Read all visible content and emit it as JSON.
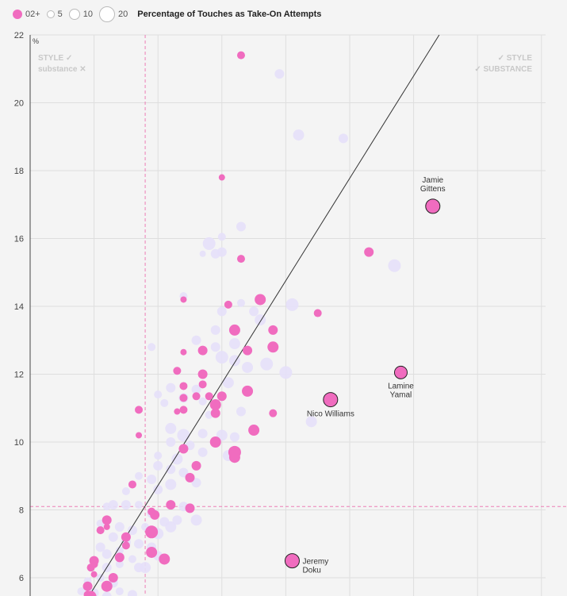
{
  "legend": {
    "cohort_label": "02+",
    "size_labels": [
      "5",
      "10",
      "20"
    ],
    "title": "Percentage of Touches as Take-On Attempts"
  },
  "colors": {
    "highlight": "#f06cbf",
    "background_points": "#e6e0fa",
    "reference_line": "#ec7fb6",
    "trend_line": "#333333",
    "grid": "#dedede",
    "quadrant_text": "#c8c8c8"
  },
  "quadrants": {
    "top_left_line1": "STYLE ✓",
    "top_left_line2": "substance ✕",
    "top_right_line1": "✓ STYLE",
    "top_right_line2": "✓ SUBSTANCE"
  },
  "chart_data": {
    "type": "scatter",
    "title": "Percentage of Touches as Take-On Attempts",
    "ylabel": "%",
    "ylim": [
      5.4,
      22
    ],
    "yticks": [
      6,
      8,
      10,
      12,
      14,
      16,
      18,
      20,
      22
    ],
    "xlim": [
      0,
      8.4
    ],
    "xgrid": [
      1,
      2,
      3,
      4,
      5,
      6,
      7,
      8
    ],
    "reference_lines": {
      "x": 1.8,
      "y": 8.1
    },
    "trend_line": {
      "from": [
        0.9,
        5.4
      ],
      "to": [
        6.4,
        22
      ]
    },
    "highlighted": [
      [
        3.3,
        21.4,
        5
      ],
      [
        3.0,
        17.8,
        4
      ],
      [
        6.3,
        16.95,
        9
      ],
      [
        5.3,
        15.6,
        6
      ],
      [
        3.3,
        15.4,
        5
      ],
      [
        3.6,
        14.2,
        7
      ],
      [
        4.5,
        13.8,
        5
      ],
      [
        2.4,
        14.2,
        4
      ],
      [
        3.1,
        14.05,
        5
      ],
      [
        3.8,
        13.3,
        6
      ],
      [
        3.2,
        13.3,
        7
      ],
      [
        3.4,
        12.7,
        6
      ],
      [
        3.8,
        12.8,
        7
      ],
      [
        2.7,
        12.7,
        6
      ],
      [
        2.4,
        12.65,
        4
      ],
      [
        2.3,
        12.1,
        5
      ],
      [
        2.7,
        12.0,
        6
      ],
      [
        2.7,
        11.7,
        5
      ],
      [
        2.4,
        11.65,
        5
      ],
      [
        3.4,
        11.5,
        7
      ],
      [
        3.0,
        11.35,
        6
      ],
      [
        2.8,
        11.35,
        5
      ],
      [
        2.6,
        11.35,
        5
      ],
      [
        2.4,
        11.3,
        5
      ],
      [
        2.9,
        11.1,
        7
      ],
      [
        1.7,
        10.95,
        5
      ],
      [
        2.3,
        10.9,
        4
      ],
      [
        2.4,
        10.95,
        5
      ],
      [
        2.9,
        10.85,
        6
      ],
      [
        3.8,
        10.85,
        5
      ],
      [
        3.5,
        10.35,
        7
      ],
      [
        1.7,
        10.2,
        4
      ],
      [
        2.9,
        10.0,
        7
      ],
      [
        2.4,
        9.8,
        6
      ],
      [
        3.2,
        9.7,
        8
      ],
      [
        3.2,
        9.55,
        7
      ],
      [
        2.6,
        9.3,
        6
      ],
      [
        2.5,
        8.95,
        6
      ],
      [
        1.6,
        8.75,
        5
      ],
      [
        2.5,
        8.05,
        6
      ],
      [
        2.2,
        8.15,
        6
      ],
      [
        1.9,
        7.95,
        5
      ],
      [
        1.95,
        7.85,
        6
      ],
      [
        1.2,
        7.7,
        6
      ],
      [
        1.1,
        7.4,
        5
      ],
      [
        1.2,
        7.5,
        4
      ],
      [
        1.9,
        7.35,
        8
      ],
      [
        1.5,
        7.2,
        6
      ],
      [
        1.5,
        6.95,
        5
      ],
      [
        1.9,
        6.75,
        7
      ],
      [
        1.4,
        6.6,
        6
      ],
      [
        2.1,
        6.55,
        7
      ],
      [
        1.0,
        6.5,
        6
      ],
      [
        0.95,
        6.3,
        5
      ],
      [
        1.0,
        6.1,
        4
      ],
      [
        1.0,
        6.4,
        5
      ],
      [
        1.3,
        6.0,
        6
      ],
      [
        0.9,
        5.75,
        6
      ],
      [
        1.2,
        5.75,
        7
      ],
      [
        0.95,
        5.45,
        7
      ],
      [
        0.9,
        5.5,
        5
      ],
      [
        4.7,
        11.25,
        9
      ],
      [
        4.1,
        6.5,
        9
      ],
      [
        5.8,
        12.05,
        8
      ]
    ],
    "background": [
      [
        3.9,
        20.85,
        6
      ],
      [
        4.2,
        19.05,
        7
      ],
      [
        4.9,
        18.95,
        6
      ],
      [
        3.3,
        16.35,
        6
      ],
      [
        3.0,
        16.05,
        5
      ],
      [
        2.8,
        15.85,
        8
      ],
      [
        3.0,
        15.6,
        6
      ],
      [
        2.9,
        15.55,
        6
      ],
      [
        2.7,
        15.55,
        4
      ],
      [
        5.7,
        15.2,
        8
      ],
      [
        4.1,
        14.05,
        8
      ],
      [
        3.5,
        13.85,
        6
      ],
      [
        3.3,
        14.1,
        5
      ],
      [
        3.0,
        13.85,
        6
      ],
      [
        3.6,
        13.6,
        7
      ],
      [
        2.9,
        13.3,
        6
      ],
      [
        2.4,
        14.3,
        5
      ],
      [
        2.6,
        13.0,
        6
      ],
      [
        3.2,
        12.9,
        7
      ],
      [
        2.9,
        12.8,
        6
      ],
      [
        3.0,
        12.5,
        8
      ],
      [
        3.7,
        12.3,
        8
      ],
      [
        3.4,
        12.2,
        7
      ],
      [
        4.0,
        12.05,
        8
      ],
      [
        1.9,
        12.8,
        5
      ],
      [
        2.2,
        11.6,
        6
      ],
      [
        2.0,
        11.4,
        5
      ],
      [
        2.6,
        11.55,
        6
      ],
      [
        3.2,
        12.4,
        7
      ],
      [
        3.1,
        11.75,
        7
      ],
      [
        2.4,
        11.3,
        6
      ],
      [
        2.7,
        11.2,
        5
      ],
      [
        2.1,
        11.15,
        5
      ],
      [
        2.8,
        10.8,
        5
      ],
      [
        3.3,
        10.9,
        6
      ],
      [
        4.4,
        10.6,
        7
      ],
      [
        2.2,
        10.4,
        7
      ],
      [
        2.4,
        10.2,
        8
      ],
      [
        2.7,
        10.25,
        6
      ],
      [
        3.0,
        10.2,
        7
      ],
      [
        3.2,
        10.15,
        6
      ],
      [
        2.2,
        10.0,
        6
      ],
      [
        2.5,
        9.9,
        6
      ],
      [
        2.9,
        9.95,
        5
      ],
      [
        2.0,
        9.6,
        5
      ],
      [
        2.3,
        9.5,
        7
      ],
      [
        2.7,
        9.7,
        6
      ],
      [
        3.1,
        9.6,
        7
      ],
      [
        2.6,
        9.3,
        5
      ],
      [
        2.0,
        9.3,
        6
      ],
      [
        2.2,
        9.2,
        6
      ],
      [
        2.4,
        9.1,
        6
      ],
      [
        1.7,
        9.0,
        5
      ],
      [
        1.9,
        8.9,
        6
      ],
      [
        2.2,
        8.75,
        7
      ],
      [
        2.6,
        8.8,
        6
      ],
      [
        2.0,
        8.6,
        6
      ],
      [
        1.5,
        8.55,
        5
      ],
      [
        1.2,
        8.1,
        5
      ],
      [
        1.3,
        8.15,
        6
      ],
      [
        1.5,
        8.15,
        6
      ],
      [
        1.7,
        8.15,
        5
      ],
      [
        2.4,
        8.1,
        6
      ],
      [
        1.9,
        7.9,
        6
      ],
      [
        2.1,
        7.65,
        6
      ],
      [
        2.2,
        7.5,
        7
      ],
      [
        2.3,
        7.7,
        6
      ],
      [
        2.6,
        7.7,
        7
      ],
      [
        1.1,
        7.6,
        5
      ],
      [
        1.4,
        7.5,
        6
      ],
      [
        1.6,
        7.4,
        6
      ],
      [
        1.8,
        7.5,
        5
      ],
      [
        2.0,
        7.3,
        7
      ],
      [
        1.3,
        7.2,
        6
      ],
      [
        1.5,
        7.05,
        6
      ],
      [
        1.7,
        7.0,
        6
      ],
      [
        1.9,
        6.9,
        6
      ],
      [
        2.0,
        6.65,
        6
      ],
      [
        1.4,
        6.8,
        5
      ],
      [
        1.1,
        6.9,
        6
      ],
      [
        1.2,
        6.7,
        6
      ],
      [
        1.6,
        6.55,
        5
      ],
      [
        1.8,
        6.3,
        7
      ],
      [
        1.4,
        6.4,
        5
      ],
      [
        1.2,
        6.3,
        6
      ],
      [
        1.1,
        6.0,
        5
      ],
      [
        0.9,
        5.9,
        5
      ],
      [
        1.3,
        5.85,
        6
      ],
      [
        1.4,
        5.6,
        5
      ],
      [
        1.0,
        5.55,
        6
      ],
      [
        1.6,
        5.5,
        6
      ],
      [
        0.8,
        5.6,
        5
      ],
      [
        1.2,
        5.45,
        6
      ],
      [
        1.7,
        6.3,
        6
      ]
    ],
    "labeled": [
      {
        "name": "Jamie Gittens",
        "lines": [
          "Jamie",
          "Gittens"
        ],
        "x": 6.3,
        "y": 16.95,
        "r": 9,
        "pos": "above"
      },
      {
        "name": "Lamine Yamal",
        "lines": [
          "Lamine",
          "Yamal"
        ],
        "x": 5.8,
        "y": 12.05,
        "r": 8,
        "pos": "below"
      },
      {
        "name": "Nico Williams",
        "lines": [
          "Nico Williams"
        ],
        "x": 4.7,
        "y": 11.25,
        "r": 9,
        "pos": "below"
      },
      {
        "name": "Jeremy Doku",
        "lines": [
          "Jeremy",
          "Doku"
        ],
        "x": 4.1,
        "y": 6.5,
        "r": 9,
        "pos": "right"
      }
    ]
  }
}
